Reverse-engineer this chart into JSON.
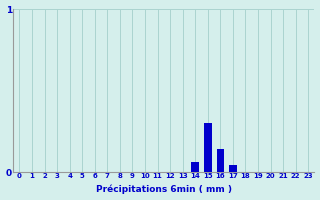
{
  "title": "",
  "xlabel": "Précipitations 6min ( mm )",
  "ylabel": "",
  "background_color": "#d5efec",
  "bar_color": "#0000cc",
  "grid_color": "#aad4d0",
  "axis_color": "#999999",
  "text_color": "#0000cc",
  "hours": [
    0,
    1,
    2,
    3,
    4,
    5,
    6,
    7,
    8,
    9,
    10,
    11,
    12,
    13,
    14,
    15,
    16,
    17,
    18,
    19,
    20,
    21,
    22,
    23
  ],
  "values": [
    0,
    0,
    0,
    0,
    0,
    0,
    0,
    0,
    0,
    0,
    0,
    0,
    0,
    0,
    0.06,
    0.3,
    0.14,
    0.04,
    0,
    0,
    0,
    0,
    0,
    0
  ],
  "ylim": [
    0,
    1.0
  ],
  "yticks": [
    0,
    1
  ],
  "ytick_labels": [
    "0",
    "1"
  ],
  "xlim": [
    -0.5,
    23.5
  ],
  "bar_width": 0.6,
  "figsize": [
    3.2,
    2.0
  ],
  "dpi": 100
}
